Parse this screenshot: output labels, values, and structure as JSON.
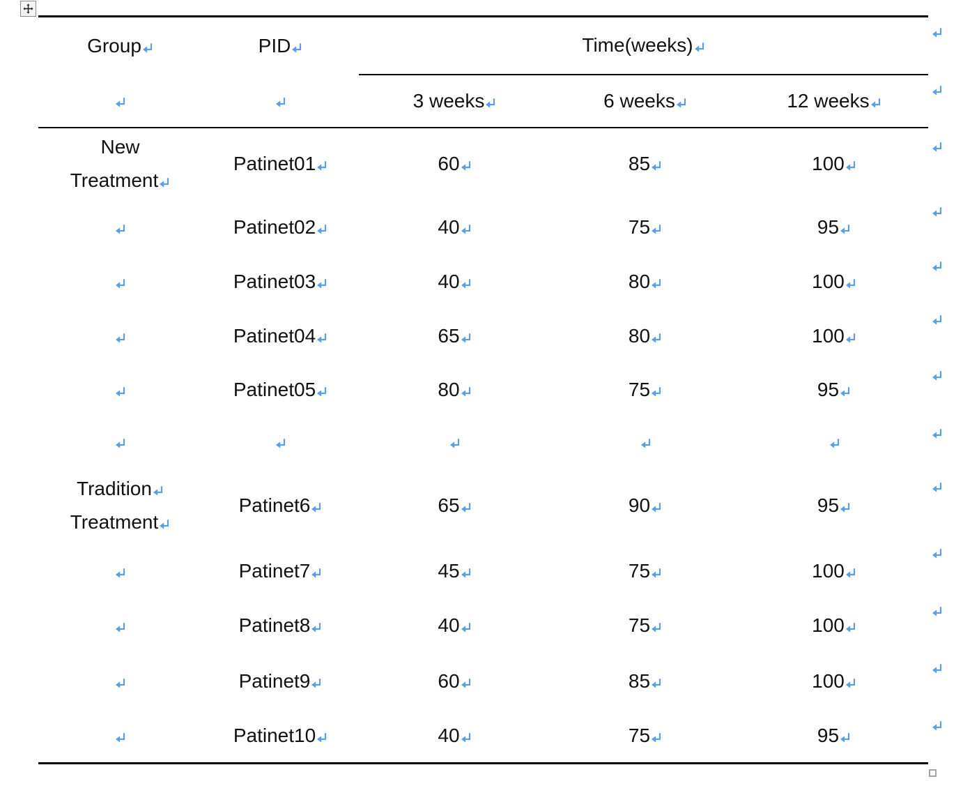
{
  "colors": {
    "text": "#111111",
    "mark_blue": "#5b9de8",
    "table_border": "#000000",
    "handle_gray": "#8c8c8c"
  },
  "icons": {
    "move_handle": "four-direction-move-icon",
    "resize_handle": "table-resize-square",
    "paragraph_mark": "return-arrow-formatting-mark"
  },
  "table": {
    "header": {
      "group": "Group",
      "pid": "PID",
      "time": "Time(weeks)",
      "sub": [
        "3 weeks",
        "6 weeks",
        "12 weeks"
      ]
    },
    "rows": [
      {
        "group_line1": "New",
        "group_line2": "Treatment",
        "pid": "Patinet01",
        "week3": "60",
        "week6": "85",
        "week12": "100"
      },
      {
        "pid": "Patinet02",
        "week3": "40",
        "week6": "75",
        "week12": "95"
      },
      {
        "pid": "Patinet03",
        "week3": "40",
        "week6": "80",
        "week12": "100"
      },
      {
        "pid": "Patinet04",
        "week3": "65",
        "week6": "80",
        "week12": "100"
      },
      {
        "pid": "Patinet05",
        "week3": "80",
        "week6": "75",
        "week12": "95"
      },
      {
        "empty": true
      },
      {
        "group_line1": "Tradition",
        "group_line2": "Treatment",
        "pid": "Patinet6",
        "week3": "65",
        "week6": "90",
        "week12": "95"
      },
      {
        "pid": "Patinet7",
        "week3": "45",
        "week6": "75",
        "week12": "100"
      },
      {
        "pid": "Patinet8",
        "week3": "40",
        "week6": "75",
        "week12": "100"
      },
      {
        "pid": "Patinet9",
        "week3": "60",
        "week6": "85",
        "week12": "100"
      },
      {
        "pid": "Patinet10",
        "week3": "40",
        "week6": "75",
        "week12": "95"
      }
    ]
  }
}
